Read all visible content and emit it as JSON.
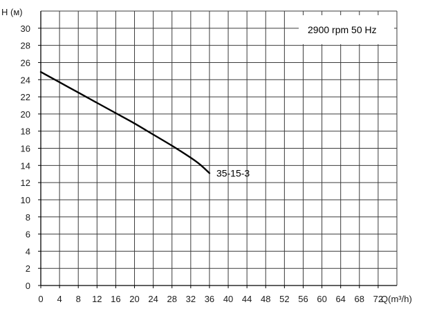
{
  "chart_data": {
    "type": "line",
    "title": "",
    "xlabel": "Q(m³/h)",
    "ylabel": "H (м)",
    "xlim": [
      0,
      76
    ],
    "ylim": [
      0,
      32
    ],
    "x_ticks": [
      0,
      4,
      8,
      12,
      16,
      20,
      24,
      28,
      32,
      36,
      40,
      44,
      48,
      52,
      56,
      60,
      64,
      68,
      72
    ],
    "y_ticks": [
      0,
      2,
      4,
      6,
      8,
      10,
      12,
      14,
      16,
      18,
      20,
      22,
      24,
      26,
      28,
      30
    ],
    "grid": true,
    "legend_text": "2900 rpm 50 Hz",
    "legend_position": "top-right",
    "series": [
      {
        "name": "35-15-3",
        "x": [
          0,
          4,
          8,
          12,
          16,
          20,
          24,
          28,
          32,
          34,
          36
        ],
        "y": [
          24.9,
          23.7,
          22.5,
          21.3,
          20.1,
          18.9,
          17.6,
          16.3,
          14.9,
          14.1,
          13.1
        ]
      }
    ],
    "colors": {
      "line": "#000000",
      "grid": "#3a3a3a",
      "axis": "#000000"
    }
  }
}
